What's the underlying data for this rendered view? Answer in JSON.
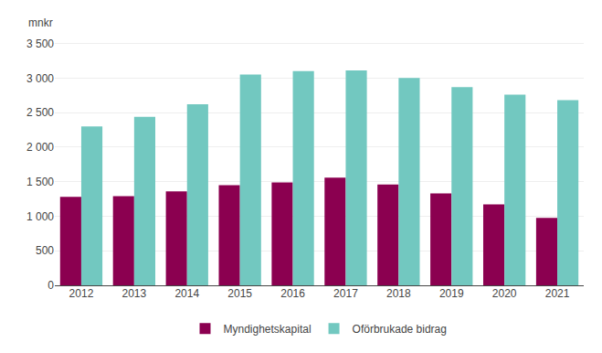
{
  "chart_data": {
    "type": "bar",
    "ylabel": "mnkr",
    "categories": [
      "2012",
      "2013",
      "2014",
      "2015",
      "2016",
      "2017",
      "2018",
      "2019",
      "2020",
      "2021"
    ],
    "series": [
      {
        "name": "Myndighetskapital",
        "color": "#8B0050",
        "values": [
          1280,
          1290,
          1360,
          1450,
          1490,
          1560,
          1460,
          1330,
          1170,
          975
        ]
      },
      {
        "name": "Oförbrukade bidrag",
        "color": "#72C8C0",
        "values": [
          2300,
          2440,
          2620,
          3050,
          3100,
          3110,
          3000,
          2870,
          2760,
          2680
        ]
      }
    ],
    "ylim": [
      0,
      3600
    ],
    "yticks": [
      0,
      500,
      {
        "value": 1000,
        "label": "1 000"
      },
      {
        "value": 1500,
        "label": "1 500"
      },
      {
        "value": 2000,
        "label": "2 000"
      },
      {
        "value": 2500,
        "label": "2 500"
      },
      {
        "value": 3000,
        "label": "3 000"
      },
      {
        "value": 3500,
        "label": "3 500"
      }
    ],
    "grid": true,
    "legend": "bottom"
  }
}
